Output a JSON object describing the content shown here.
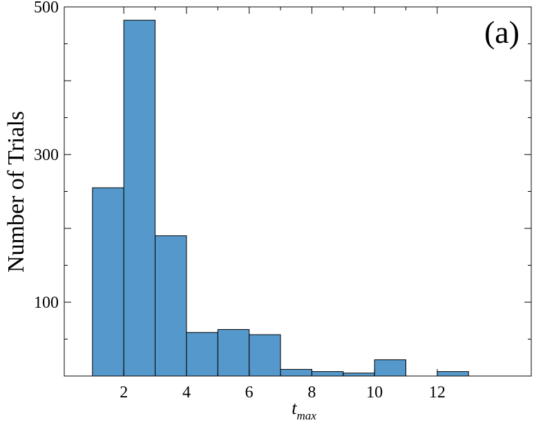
{
  "chart_data": {
    "type": "bar",
    "panel_label": "(a)",
    "xlabel": {
      "main": "t",
      "subscript": "max"
    },
    "ylabel": "Number of Trials",
    "xlim": [
      0.1,
      15.0
    ],
    "ylim": [
      0,
      500
    ],
    "x_ticks": [
      2,
      4,
      6,
      8,
      10,
      12
    ],
    "y_ticks": [
      100,
      300,
      500
    ],
    "grid": false,
    "bar_color": "#5599cc",
    "bar_edge_color": "#000000",
    "bins": [
      {
        "x0": 1.0,
        "x1": 2.0,
        "value": 255
      },
      {
        "x0": 2.0,
        "x1": 3.0,
        "value": 482
      },
      {
        "x0": 3.0,
        "x1": 4.0,
        "value": 190
      },
      {
        "x0": 4.0,
        "x1": 5.0,
        "value": 59
      },
      {
        "x0": 5.0,
        "x1": 6.0,
        "value": 63
      },
      {
        "x0": 6.0,
        "x1": 7.0,
        "value": 56
      },
      {
        "x0": 7.0,
        "x1": 8.0,
        "value": 9
      },
      {
        "x0": 8.0,
        "x1": 9.0,
        "value": 6
      },
      {
        "x0": 9.0,
        "x1": 10.0,
        "value": 4
      },
      {
        "x0": 10.0,
        "x1": 11.0,
        "value": 22
      },
      {
        "x0": 11.0,
        "x1": 12.0,
        "value": 0
      },
      {
        "x0": 12.0,
        "x1": 13.0,
        "value": 6
      }
    ]
  }
}
